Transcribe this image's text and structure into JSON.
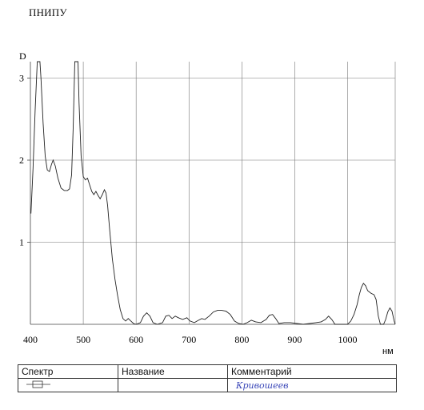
{
  "header": {
    "title": "ПНИПУ"
  },
  "chart_data": {
    "type": "line",
    "title": "",
    "xlabel": "нм",
    "ylabel": "D",
    "xlim": [
      400,
      1090
    ],
    "ylim": [
      0,
      3.2
    ],
    "x_ticks": [
      400,
      500,
      600,
      700,
      800,
      900,
      1000
    ],
    "y_ticks": [
      1,
      2,
      3
    ],
    "grid": true,
    "line_color": "#222222",
    "series": [
      {
        "name": "",
        "points": [
          [
            401,
            1.35
          ],
          [
            405,
            1.9
          ],
          [
            409,
            2.6
          ],
          [
            413,
            3.2
          ],
          [
            418,
            3.2
          ],
          [
            420,
            3.0
          ],
          [
            424,
            2.45
          ],
          [
            428,
            2.05
          ],
          [
            432,
            1.88
          ],
          [
            436,
            1.86
          ],
          [
            440,
            1.95
          ],
          [
            443,
            2.0
          ],
          [
            447,
            1.93
          ],
          [
            452,
            1.78
          ],
          [
            458,
            1.66
          ],
          [
            464,
            1.63
          ],
          [
            470,
            1.63
          ],
          [
            474,
            1.65
          ],
          [
            478,
            1.82
          ],
          [
            481,
            2.4
          ],
          [
            484,
            3.2
          ],
          [
            490,
            3.2
          ],
          [
            492,
            2.7
          ],
          [
            496,
            2.05
          ],
          [
            500,
            1.8
          ],
          [
            504,
            1.76
          ],
          [
            508,
            1.78
          ],
          [
            512,
            1.7
          ],
          [
            516,
            1.62
          ],
          [
            520,
            1.58
          ],
          [
            524,
            1.62
          ],
          [
            528,
            1.57
          ],
          [
            532,
            1.53
          ],
          [
            536,
            1.58
          ],
          [
            540,
            1.64
          ],
          [
            543,
            1.6
          ],
          [
            546,
            1.45
          ],
          [
            550,
            1.15
          ],
          [
            555,
            0.8
          ],
          [
            560,
            0.55
          ],
          [
            565,
            0.35
          ],
          [
            570,
            0.18
          ],
          [
            575,
            0.07
          ],
          [
            580,
            0.04
          ],
          [
            585,
            0.07
          ],
          [
            590,
            0.04
          ],
          [
            595,
            0.01
          ],
          [
            600,
            0.0
          ],
          [
            608,
            0.02
          ],
          [
            614,
            0.1
          ],
          [
            620,
            0.14
          ],
          [
            626,
            0.1
          ],
          [
            632,
            0.02
          ],
          [
            640,
            0.0
          ],
          [
            650,
            0.02
          ],
          [
            656,
            0.1
          ],
          [
            662,
            0.11
          ],
          [
            668,
            0.07
          ],
          [
            674,
            0.1
          ],
          [
            680,
            0.08
          ],
          [
            688,
            0.06
          ],
          [
            696,
            0.08
          ],
          [
            702,
            0.04
          ],
          [
            710,
            0.02
          ],
          [
            718,
            0.05
          ],
          [
            724,
            0.07
          ],
          [
            730,
            0.06
          ],
          [
            738,
            0.1
          ],
          [
            746,
            0.15
          ],
          [
            754,
            0.17
          ],
          [
            762,
            0.17
          ],
          [
            770,
            0.16
          ],
          [
            778,
            0.12
          ],
          [
            786,
            0.04
          ],
          [
            794,
            0.01
          ],
          [
            802,
            0.0
          ],
          [
            810,
            0.02
          ],
          [
            818,
            0.05
          ],
          [
            826,
            0.03
          ],
          [
            836,
            0.02
          ],
          [
            846,
            0.06
          ],
          [
            852,
            0.11
          ],
          [
            858,
            0.12
          ],
          [
            864,
            0.07
          ],
          [
            870,
            0.01
          ],
          [
            880,
            0.02
          ],
          [
            892,
            0.02
          ],
          [
            904,
            0.01
          ],
          [
            916,
            0.0
          ],
          [
            928,
            0.01
          ],
          [
            940,
            0.02
          ],
          [
            950,
            0.03
          ],
          [
            958,
            0.06
          ],
          [
            964,
            0.1
          ],
          [
            970,
            0.06
          ],
          [
            976,
            0.0
          ],
          [
            984,
            0.0
          ],
          [
            992,
            0.0
          ],
          [
            1000,
            0.0
          ],
          [
            1006,
            0.04
          ],
          [
            1012,
            0.12
          ],
          [
            1018,
            0.24
          ],
          [
            1022,
            0.36
          ],
          [
            1026,
            0.45
          ],
          [
            1030,
            0.5
          ],
          [
            1034,
            0.47
          ],
          [
            1038,
            0.41
          ],
          [
            1044,
            0.38
          ],
          [
            1050,
            0.36
          ],
          [
            1054,
            0.3
          ],
          [
            1058,
            0.1
          ],
          [
            1062,
            0.0
          ],
          [
            1068,
            0.0
          ],
          [
            1072,
            0.06
          ],
          [
            1076,
            0.15
          ],
          [
            1080,
            0.2
          ],
          [
            1084,
            0.16
          ],
          [
            1088,
            0.04
          ],
          [
            1090,
            0.0
          ]
        ]
      }
    ]
  },
  "legend_table": {
    "headers": [
      "Спектр",
      "Название",
      "Комментарий"
    ],
    "row": {
      "spectrum_swatch": "line-swatch-icon",
      "name": "",
      "comment": "Кривошеев"
    }
  }
}
